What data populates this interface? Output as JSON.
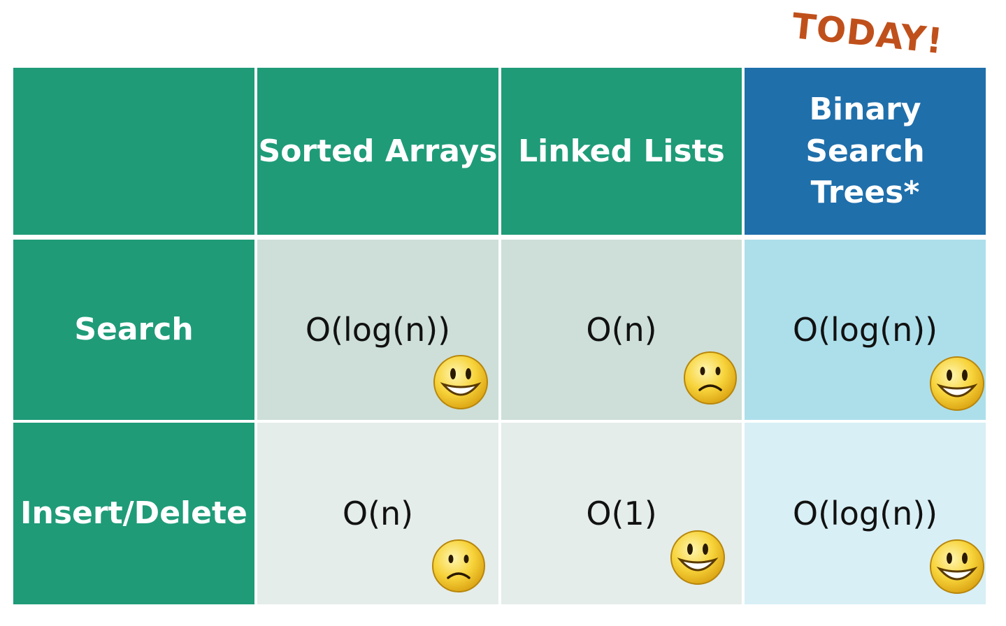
{
  "annotation": "TODAY!",
  "table": {
    "columns": [
      "",
      "Sorted Arrays",
      "Linked Lists",
      "Binary Search Trees*"
    ],
    "rows": [
      {
        "label": "Search",
        "cells": [
          {
            "value": "O(log(n))",
            "face": "smiley-face-icon"
          },
          {
            "value": "O(n)",
            "face": "frown-face-icon"
          },
          {
            "value": "O(log(n))",
            "face": "smiley-face-icon"
          }
        ]
      },
      {
        "label": "Insert/Delete",
        "cells": [
          {
            "value": "O(n)",
            "face": "frown-face-icon"
          },
          {
            "value": "O(1)",
            "face": "smiley-face-icon"
          },
          {
            "value": "O(log(n))",
            "face": "smiley-face-icon"
          }
        ]
      }
    ]
  },
  "colors": {
    "header_green": "#1f9b78",
    "header_blue": "#1f6fab",
    "annotation": "#c0501b"
  }
}
